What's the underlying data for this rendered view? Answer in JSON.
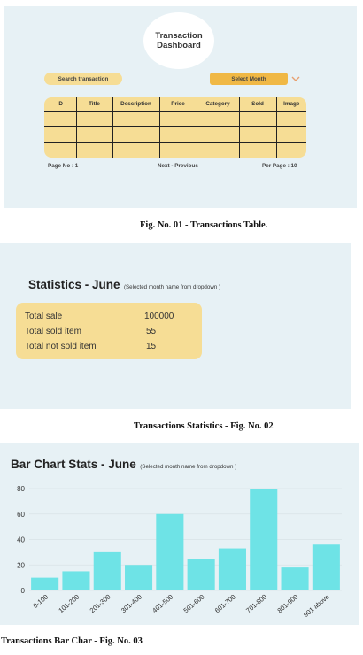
{
  "transactions_table": {
    "title_line1": "Transaction",
    "title_line2": "Dashboard",
    "search_placeholder": "Search transaction",
    "month_select": "Select Month",
    "columns": [
      "ID",
      "Title",
      "Description",
      "Price",
      "Category",
      "Sold",
      "Image"
    ],
    "empty_row_count": 3,
    "page_no": "Page No : 1",
    "pager": "Next   -  Previous",
    "per_page": "Per Page :  10",
    "caption": "Fig. No. 01 - Transactions Table."
  },
  "statistics": {
    "title": "Statistics  - June",
    "note": "(Selected month name from dropdown )",
    "rows": [
      {
        "label": "Total sale",
        "value": "100000"
      },
      {
        "label": "Total sold item",
        "value": "55"
      },
      {
        "label": "Total not sold item",
        "value": "15"
      }
    ],
    "caption": "Transactions Statistics - Fig. No. 02"
  },
  "bar_chart": {
    "title": "Bar Chart Stats  - June",
    "note": "(Selected month name from dropdown )",
    "caption": "Transactions Bar Char - Fig. No. 03"
  },
  "chart_data": {
    "type": "bar",
    "title": "Bar Chart Stats  - June",
    "categories": [
      "0-100",
      "101-200",
      "201-300",
      "301-400",
      "401-500",
      "501-600",
      "601-700",
      "701-800",
      "801-900",
      "901 above"
    ],
    "values": [
      10,
      15,
      30,
      20,
      60,
      25,
      33,
      80,
      18,
      36
    ],
    "yticks": [
      0,
      20,
      40,
      60,
      80
    ],
    "ylim": [
      0,
      80
    ],
    "xlabel": "",
    "ylabel": "",
    "grid": true,
    "bar_color": "#6ee3e6"
  }
}
